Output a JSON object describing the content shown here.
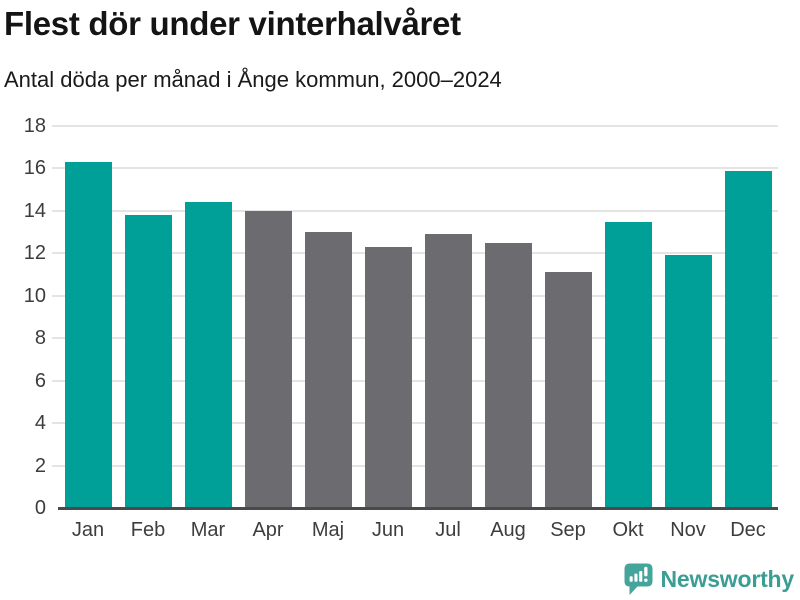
{
  "header": {
    "title": "Flest dör under vinterhalvåret",
    "subtitle": "Antal döda per månad i Ånge kommun, 2000–2024"
  },
  "chart_data": {
    "type": "bar",
    "title": "Flest dör under vinterhalvåret",
    "subtitle": "Antal döda per månad i Ånge kommun, 2000–2024",
    "categories": [
      "Jan",
      "Feb",
      "Mar",
      "Apr",
      "Maj",
      "Jun",
      "Jul",
      "Aug",
      "Sep",
      "Okt",
      "Nov",
      "Dec"
    ],
    "values": [
      16.3,
      13.8,
      14.4,
      14.0,
      13.0,
      12.3,
      12.9,
      12.5,
      11.1,
      13.5,
      11.9,
      15.9
    ],
    "highlighted": [
      true,
      true,
      true,
      false,
      false,
      false,
      false,
      false,
      false,
      true,
      true,
      true
    ],
    "highlight_color": "#00a098",
    "base_color": "#6b6b70",
    "xlabel": "",
    "ylabel": "",
    "ylim": [
      0,
      18
    ],
    "yticks": [
      0,
      2,
      4,
      6,
      8,
      10,
      12,
      14,
      16,
      18
    ],
    "grid": "horizontal",
    "gridline_color": "#e4e4e4",
    "axis_line_color": "#4a4a4a",
    "legend": "none"
  },
  "footer": {
    "brand": "Newsworthy",
    "brand_color": "#3b9e94",
    "icon_color": "#45a59b",
    "icon": "newsworthy-speech-bubble-bar-chart-icon"
  }
}
